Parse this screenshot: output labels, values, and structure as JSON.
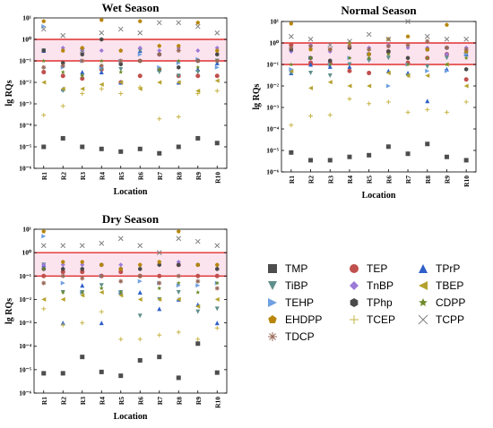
{
  "chart_data": [
    {
      "type": "scatter",
      "title": "Wet Season",
      "xlabel": "Location",
      "ylabel": "lg RQs",
      "categories": [
        "R1",
        "R2",
        "R3",
        "R4",
        "R5",
        "R6",
        "R7",
        "R8",
        "R9",
        "R10"
      ],
      "yscale": "log",
      "ylim": [
        1e-06,
        10
      ],
      "yticks": [
        "10⁻⁶",
        "10⁻⁵",
        "10⁻⁴",
        "10⁻³",
        "10⁻²",
        "10⁻¹",
        "10⁰",
        "10¹"
      ],
      "threshold_lines": [
        1,
        0.1
      ],
      "series": [
        {
          "name": "TMP",
          "values": [
            1e-05,
            2.5e-05,
            1e-05,
            8e-06,
            6e-06,
            8e-06,
            5e-06,
            1e-05,
            2.5e-05,
            1.5e-05
          ]
        },
        {
          "name": "TEP",
          "values": [
            0.03,
            0.02,
            0.015,
            0.04,
            0.01,
            0.02,
            0.04,
            0.02,
            0.02,
            0.02
          ]
        },
        {
          "name": "TPrP",
          "values": [
            0.3,
            0.005,
            0.03,
            0.03,
            0.01,
            0.3,
            0.04,
            0.01,
            0.04,
            0.08
          ]
        },
        {
          "name": "TiBP",
          "values": [
            0.3,
            0.004,
            0.02,
            0.04,
            0.04,
            0.3,
            0.03,
            0.02,
            0.03,
            0.1
          ]
        },
        {
          "name": "TnBP",
          "values": [
            0.3,
            0.4,
            0.3,
            0.3,
            0.3,
            0.4,
            0.3,
            0.4,
            0.3,
            0.4
          ]
        },
        {
          "name": "TBEP",
          "values": [
            0.01,
            0.005,
            0.005,
            0.008,
            0.01,
            0.005,
            0.01,
            0.01,
            0.004,
            0.012
          ]
        },
        {
          "name": "TEHP",
          "values": [
            4,
            0.05,
            0.1,
            0.05,
            0.1,
            0.2,
            0.05,
            0.08,
            0.12,
            0.05
          ]
        },
        {
          "name": "TPhp",
          "values": [
            0.3,
            0.08,
            0.2,
            1.0,
            0.07,
            0.1,
            0.2,
            0.05,
            0.1,
            0.2
          ]
        },
        {
          "name": "CDPP",
          "values": [
            0.1,
            0.03,
            0.02,
            0.1,
            0.03,
            0.1,
            0.04,
            0.1,
            0.05,
            0.1
          ]
        },
        {
          "name": "EHDPP",
          "values": [
            7,
            0.3,
            0.4,
            8,
            0.3,
            7,
            0.5,
            0.5,
            6,
            0.3
          ]
        },
        {
          "name": "TCEP",
          "values": [
            0.0003,
            0.0008,
            0.003,
            0.005,
            0.003,
            0.006,
            0.0002,
            0.00025,
            0.003,
            0.004
          ]
        },
        {
          "name": "TCPP",
          "values": [
            3,
            1.5,
            0.3,
            2,
            3,
            2,
            6,
            6,
            4,
            2
          ]
        },
        {
          "name": "TDCP",
          "values": [
            0.05,
            0.06,
            0.1,
            0.06,
            0.1,
            0.1,
            0.2,
            0.3,
            0.1,
            0.1
          ]
        }
      ]
    },
    {
      "type": "scatter",
      "title": "Normal Season",
      "xlabel": "Location",
      "ylabel": "lg RQs",
      "categories": [
        "R1",
        "R2",
        "R3",
        "R4",
        "R5",
        "R6",
        "R7",
        "R8",
        "R9",
        "R10"
      ],
      "yscale": "log",
      "ylim": [
        1e-06,
        10
      ],
      "yticks": [
        "10⁻⁶",
        "10⁻⁵",
        "10⁻⁴",
        "10⁻³",
        "10⁻²",
        "10⁻¹",
        "10⁰",
        "10¹"
      ],
      "threshold_lines": [
        1,
        0.1
      ],
      "series": [
        {
          "name": "TMP",
          "values": [
            8e-06,
            3.5e-06,
            3.5e-06,
            5e-06,
            6e-06,
            1.5e-05,
            7e-06,
            2e-05,
            5e-06,
            3.5e-06
          ]
        },
        {
          "name": "TEP",
          "values": [
            0.8,
            0.12,
            0.12,
            0.05,
            0.04,
            0.4,
            0.12,
            0.2,
            0.3,
            0.02
          ]
        },
        {
          "name": "TPrP",
          "values": [
            0.04,
            0.1,
            0.08,
            0.08,
            0.2,
            0.05,
            0.04,
            0.002,
            0.06,
            0.3
          ]
        },
        {
          "name": "TiBP",
          "values": [
            0.04,
            0.04,
            0.03,
            0.1,
            0.15,
            0.2,
            0.03,
            0.08,
            0.2,
            0.3
          ]
        },
        {
          "name": "TnBP",
          "values": [
            0.4,
            0.8,
            0.4,
            0.6,
            0.6,
            0.8,
            0.6,
            0.6,
            0.3,
            0.6
          ]
        },
        {
          "name": "TBEP",
          "values": [
            0.05,
            0.008,
            0.015,
            0.01,
            0.01,
            0.04,
            0.03,
            0.03,
            0.1,
            0.01
          ]
        },
        {
          "name": "TEHP",
          "values": [
            0.06,
            0.2,
            0.1,
            0.2,
            0.3,
            0.01,
            0.1,
            0.05,
            0.05,
            0.3
          ]
        },
        {
          "name": "TPhp",
          "values": [
            0.5,
            0.2,
            0.15,
            0.6,
            0.3,
            0.4,
            0.2,
            0.5,
            0.6,
            0.06
          ]
        },
        {
          "name": "CDPP",
          "values": [
            0.1,
            0.2,
            0.1,
            0.2,
            0.2,
            0.3,
            0.1,
            0.2,
            0.1,
            0.2
          ]
        },
        {
          "name": "EHDPP",
          "values": [
            8,
            0.5,
            0.5,
            1,
            0.3,
            1.5,
            2,
            0.5,
            7,
            0.4
          ]
        },
        {
          "name": "TCEP",
          "values": [
            0.00015,
            0.0004,
            0.00045,
            0.0025,
            0.0015,
            0.0018,
            0.0006,
            0.0008,
            0.0006,
            0.0018
          ]
        },
        {
          "name": "TCPP",
          "values": [
            2,
            1.5,
            0.8,
            1.2,
            2.5,
            1.5,
            10,
            2,
            1.5,
            1.5
          ]
        },
        {
          "name": "TDCP",
          "values": [
            0.6,
            0.7,
            0.5,
            0.7,
            0.5,
            0.7,
            0.8,
            1.2,
            0.6,
            0.5
          ]
        }
      ]
    },
    {
      "type": "scatter",
      "title": "Dry Season",
      "xlabel": "Location",
      "ylabel": "lg RQs",
      "categories": [
        "R1",
        "R2",
        "R3",
        "R4",
        "R5",
        "R6",
        "R7",
        "R8",
        "R9",
        "R10"
      ],
      "yscale": "log",
      "ylim": [
        1e-06,
        10
      ],
      "yticks": [
        "10⁻⁶",
        "10⁻⁵",
        "10⁻⁴",
        "10⁻³",
        "10⁻²",
        "10⁻¹",
        "10⁰",
        "10¹"
      ],
      "threshold_lines": [
        1,
        0.1
      ],
      "series": [
        {
          "name": "TMP",
          "values": [
            7e-06,
            7e-06,
            3.5e-05,
            8e-06,
            5.5e-06,
            2.5e-05,
            3.5e-05,
            4.5e-06,
            0.00013,
            7.5e-06
          ]
        },
        {
          "name": "TEP",
          "values": [
            0.1,
            0.15,
            0.15,
            0.1,
            0.15,
            0.1,
            0.1,
            0.3,
            0.1,
            0.1
          ]
        },
        {
          "name": "TPrP",
          "values": [
            0.3,
            0.001,
            0.04,
            0.001,
            0.02,
            0.02,
            0.004,
            0.01,
            0.006,
            0.001
          ]
        },
        {
          "name": "TiBP",
          "values": [
            0.3,
            0.02,
            0.02,
            0.04,
            0.02,
            0.002,
            0.01,
            0.02,
            0.003,
            0.004
          ]
        },
        {
          "name": "TnBP",
          "values": [
            0.3,
            0.3,
            0.3,
            0.3,
            0.3,
            0.3,
            0.3,
            0.4,
            0.3,
            0.3
          ]
        },
        {
          "name": "TBEP",
          "values": [
            0.01,
            0.01,
            0.015,
            0.02,
            0.015,
            0.01,
            0.01,
            0.01,
            0.005,
            0.01
          ]
        },
        {
          "name": "TEHP",
          "values": [
            5,
            0.05,
            0.02,
            0.1,
            0.02,
            0.06,
            0.05,
            0.04,
            0.04,
            0.05
          ]
        },
        {
          "name": "TPhp",
          "values": [
            0.2,
            0.2,
            0.2,
            0.3,
            0.2,
            0.2,
            0.3,
            0.3,
            0.3,
            0.2
          ]
        },
        {
          "name": "CDPP",
          "values": [
            0.2,
            0.02,
            0.02,
            0.03,
            0.02,
            0.1,
            0.03,
            0.05,
            0.02,
            0.05
          ]
        },
        {
          "name": "EHDPP",
          "values": [
            8,
            0.4,
            0.4,
            0.3,
            0.2,
            0.3,
            0.4,
            8,
            0.3,
            0.3
          ]
        },
        {
          "name": "TCEP",
          "values": [
            0.004,
            0.0008,
            0.001,
            0.003,
            0.0002,
            0.0002,
            0.0003,
            0.0004,
            0.0002,
            0.0006
          ]
        },
        {
          "name": "TCPP",
          "values": [
            2,
            2,
            2,
            2.5,
            4,
            2,
            1,
            4,
            3,
            2
          ]
        },
        {
          "name": "TDCP",
          "values": [
            0.05,
            0.1,
            0.08,
            0.1,
            0.06,
            0.1,
            0.05,
            0.1,
            0.06,
            0.03
          ]
        }
      ]
    }
  ],
  "legend": [
    {
      "name": "TMP",
      "marker": "square",
      "color": "#4d4d4d"
    },
    {
      "name": "TEP",
      "marker": "circle",
      "color": "#c0504d"
    },
    {
      "name": "TPrP",
      "marker": "triangle-up",
      "color": "#2f5fc9"
    },
    {
      "name": "TiBP",
      "marker": "triangle-down",
      "color": "#5f8f8a"
    },
    {
      "name": "TnBP",
      "marker": "diamond",
      "color": "#9b7ad8"
    },
    {
      "name": "TBEP",
      "marker": "triangle-left",
      "color": "#b5a22e"
    },
    {
      "name": "TEHP",
      "marker": "triangle-right",
      "color": "#6fa0e0"
    },
    {
      "name": "TPhp",
      "marker": "hexagon",
      "color": "#4a4a4a"
    },
    {
      "name": "CDPP",
      "marker": "star",
      "color": "#6e8a2a"
    },
    {
      "name": "EHDPP",
      "marker": "pentagon",
      "color": "#b8860b"
    },
    {
      "name": "TCEP",
      "marker": "plus",
      "color": "#c8b64a"
    },
    {
      "name": "TCPP",
      "marker": "x",
      "color": "#808080"
    },
    {
      "name": "TDCP",
      "marker": "asterisk",
      "color": "#9a6a5a"
    }
  ],
  "colors": {
    "threshold_line": "#e03030",
    "band": "#fbe4ee",
    "axis": "#000000"
  }
}
